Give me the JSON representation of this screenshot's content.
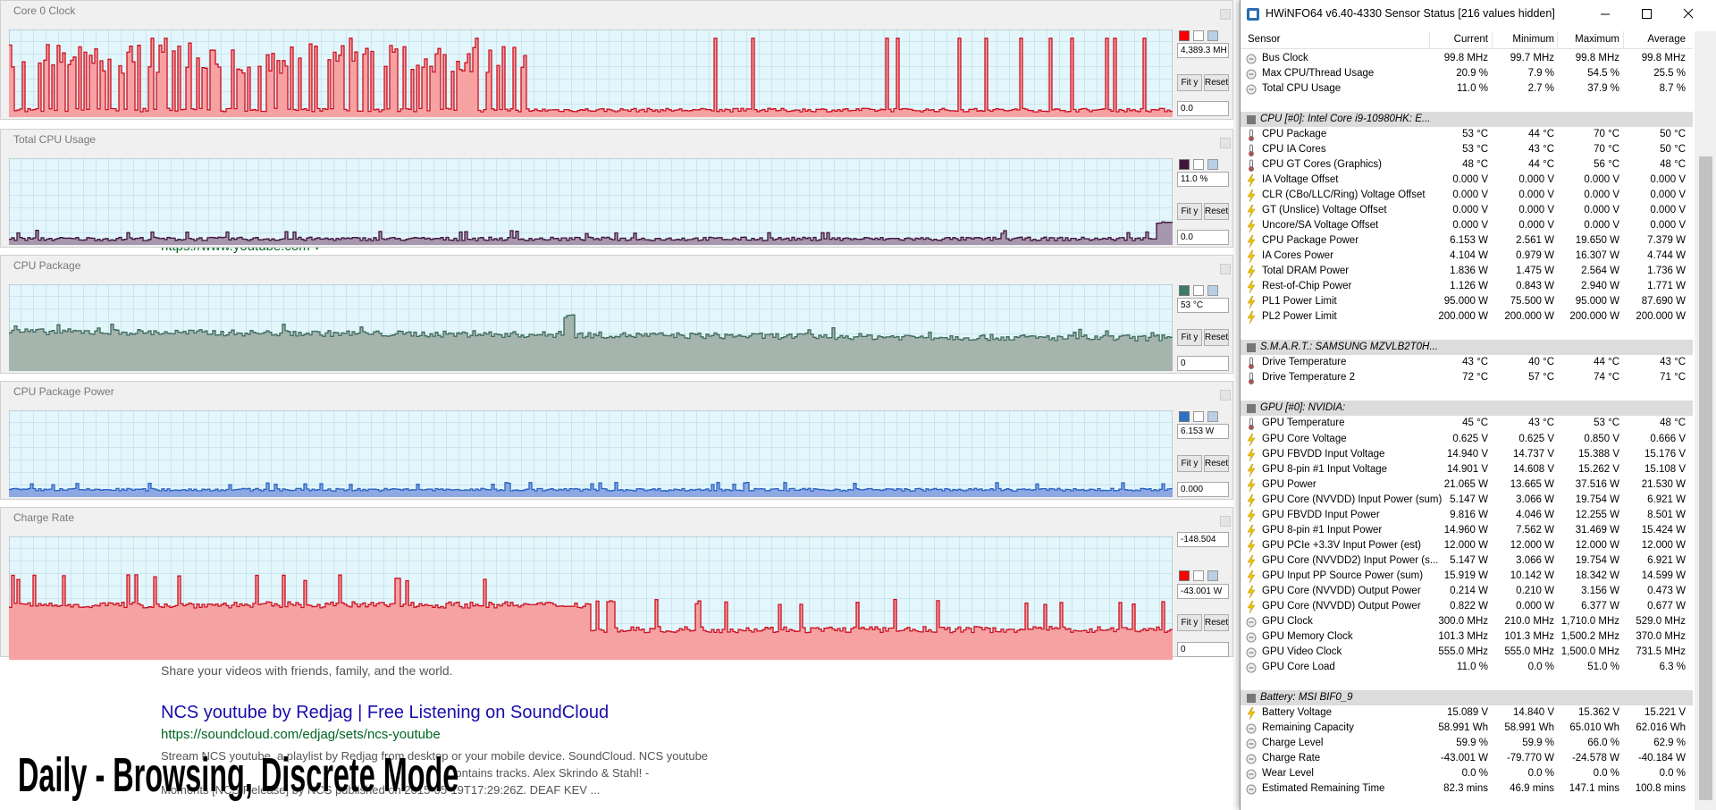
{
  "panels": [
    {
      "title": "Core 0 Clock",
      "readouts": [
        "4,389.3 MH",
        "0.0"
      ],
      "fill": "#f6a2a2",
      "line": "#cc1020",
      "swatch": "#ff0000"
    },
    {
      "title": "Total CPU Usage",
      "readouts": [
        "11.0 %",
        "0.0"
      ],
      "fill": "#a696ae",
      "line": "#40143c",
      "swatch": "#40143c"
    },
    {
      "title": "CPU Package",
      "readouts": [
        "53 °C",
        "0"
      ],
      "fill": "#a6b4ae",
      "line": "#3c6a5a",
      "swatch": "#3c7a6a"
    },
    {
      "title": "CPU Package Power",
      "readouts": [
        "6.153 W",
        "0.000"
      ],
      "fill": "#8ea8e4",
      "line": "#2a62c4",
      "swatch": "#2a72c4"
    },
    {
      "title": "Charge Rate",
      "readouts": [
        "-148.504",
        "-43.001 W",
        "0"
      ],
      "fill": "#f6a2a2",
      "line": "#cc1020",
      "swatch": "#ff0000"
    }
  ],
  "buttons": [
    "Fit y",
    "Reset"
  ],
  "web": {
    "url1": "https://www.youtube.com ▾",
    "tagline": "Share your videos with friends, family, and the world.",
    "link": "NCS youtube by Redjag | Free Listening on SoundCloud",
    "url2": "https://soundcloud.com/edjag/sets/ncs-youtube",
    "snippet": [
      "Stream NCS youtube, a playlist by Redjag from desktop or your mobile device. SoundCloud. NCS youtube",
      "Contains tracks. Alex Skrindo & Stahl! -",
      "Moments [NCS Release] by NCS published on 2015-05-19T17:29:26Z. DEAF KEV ..."
    ]
  },
  "overlay_caption": "Daily - Browsing, Discrete Mode",
  "window": {
    "title": "HWiNFO64 v6.40-4330 Sensor Status [216 values hidden]",
    "columns": [
      "Sensor",
      "Current",
      "Minimum",
      "Maximum",
      "Average"
    ],
    "groups": [
      {
        "rows": [
          [
            "Bus Clock",
            "99.8 MHz",
            "99.7 MHz",
            "99.8 MHz",
            "99.8 MHz"
          ],
          [
            "Max CPU/Thread Usage",
            "20.9 %",
            "7.9 %",
            "54.5 %",
            "25.5 %"
          ],
          [
            "Total CPU Usage",
            "11.0 %",
            "2.7 %",
            "37.9 %",
            "8.7 %"
          ]
        ]
      },
      {
        "header": "CPU [#0]: Intel Core i9-10980HK: E...",
        "rows": [
          [
            "CPU Package",
            "53 °C",
            "44 °C",
            "70 °C",
            "50 °C"
          ],
          [
            "CPU IA Cores",
            "53 °C",
            "43 °C",
            "70 °C",
            "50 °C"
          ],
          [
            "CPU GT Cores (Graphics)",
            "48 °C",
            "44 °C",
            "56 °C",
            "48 °C"
          ],
          [
            "IA Voltage Offset",
            "0.000 V",
            "0.000 V",
            "0.000 V",
            "0.000 V"
          ],
          [
            "CLR (CBo/LLC/Ring) Voltage Offset",
            "0.000 V",
            "0.000 V",
            "0.000 V",
            "0.000 V"
          ],
          [
            "GT (Unslice) Voltage Offset",
            "0.000 V",
            "0.000 V",
            "0.000 V",
            "0.000 V"
          ],
          [
            "Uncore/SA Voltage Offset",
            "0.000 V",
            "0.000 V",
            "0.000 V",
            "0.000 V"
          ],
          [
            "CPU Package Power",
            "6.153 W",
            "2.561 W",
            "19.650 W",
            "7.379 W"
          ],
          [
            "IA Cores Power",
            "4.104 W",
            "0.979 W",
            "16.307 W",
            "4.744 W"
          ],
          [
            "Total DRAM Power",
            "1.836 W",
            "1.475 W",
            "2.564 W",
            "1.736 W"
          ],
          [
            "Rest-of-Chip Power",
            "1.126 W",
            "0.843 W",
            "2.940 W",
            "1.771 W"
          ],
          [
            "PL1 Power Limit",
            "95.000 W",
            "75.500 W",
            "95.000 W",
            "87.690 W"
          ],
          [
            "PL2 Power Limit",
            "200.000 W",
            "200.000 W",
            "200.000 W",
            "200.000 W"
          ]
        ]
      },
      {
        "header": "S.M.A.R.T.: SAMSUNG MZVLB2T0H...",
        "rows": [
          [
            "Drive Temperature",
            "43 °C",
            "40 °C",
            "44 °C",
            "43 °C"
          ],
          [
            "Drive Temperature 2",
            "72 °C",
            "57 °C",
            "74 °C",
            "71 °C"
          ]
        ]
      },
      {
        "header": "GPU [#0]: NVIDIA:",
        "rows": [
          [
            "GPU Temperature",
            "45 °C",
            "43 °C",
            "53 °C",
            "48 °C"
          ],
          [
            "GPU Core Voltage",
            "0.625 V",
            "0.625 V",
            "0.850 V",
            "0.666 V"
          ],
          [
            "GPU FBVDD Input Voltage",
            "14.940 V",
            "14.737 V",
            "15.388 V",
            "15.176 V"
          ],
          [
            "GPU 8-pin #1 Input Voltage",
            "14.901 V",
            "14.608 V",
            "15.262 V",
            "15.108 V"
          ],
          [
            "GPU Power",
            "21.065 W",
            "13.665 W",
            "37.516 W",
            "21.530 W"
          ],
          [
            "GPU Core (NVVDD) Input Power (sum)",
            "5.147 W",
            "3.066 W",
            "19.754 W",
            "6.921 W"
          ],
          [
            "GPU FBVDD Input Power",
            "9.816 W",
            "4.046 W",
            "12.255 W",
            "8.501 W"
          ],
          [
            "GPU 8-pin #1 Input Power",
            "14.960 W",
            "7.562 W",
            "31.469 W",
            "15.424 W"
          ],
          [
            "GPU PCIe +3.3V Input Power (est)",
            "12.000 W",
            "12.000 W",
            "12.000 W",
            "12.000 W"
          ],
          [
            "GPU Core (NVVDD2) Input Power (s...",
            "5.147 W",
            "3.066 W",
            "19.754 W",
            "6.921 W"
          ],
          [
            "GPU Input PP Source Power (sum)",
            "15.919 W",
            "10.142 W",
            "18.342 W",
            "14.599 W"
          ],
          [
            "GPU Core (NVVDD) Output Power",
            "0.214 W",
            "0.210 W",
            "3.156 W",
            "0.473 W"
          ],
          [
            "GPU Core (NVVDD) Output Power",
            "0.822 W",
            "0.000 W",
            "6.377 W",
            "0.677 W"
          ],
          [
            "GPU Clock",
            "300.0 MHz",
            "210.0 MHz",
            "1,710.0 MHz",
            "529.0 MHz"
          ],
          [
            "GPU Memory Clock",
            "101.3 MHz",
            "101.3 MHz",
            "1,500.2 MHz",
            "370.0 MHz"
          ],
          [
            "GPU Video Clock",
            "555.0 MHz",
            "555.0 MHz",
            "1,500.0 MHz",
            "731.5 MHz"
          ],
          [
            "GPU Core Load",
            "11.0 %",
            "0.0 %",
            "51.0 %",
            "6.3 %"
          ]
        ]
      },
      {
        "header": "Battery: MSI BIF0_9",
        "rows": [
          [
            "Battery Voltage",
            "15.089 V",
            "14.840 V",
            "15.362 V",
            "15.221 V"
          ],
          [
            "Remaining Capacity",
            "58.991 Wh",
            "58.991 Wh",
            "65.010 Wh",
            "62.016 Wh"
          ],
          [
            "Charge Level",
            "59.9 %",
            "59.9 %",
            "66.0 %",
            "62.9 %"
          ],
          [
            "Charge Rate",
            "-43.001 W",
            "-79.770 W",
            "-24.578 W",
            "-40.184 W"
          ],
          [
            "Wear Level",
            "0.0 %",
            "0.0 %",
            "0.0 %",
            "0.0 %"
          ],
          [
            "Estimated Remaining Time",
            "82.3 mins",
            "46.9 mins",
            "147.1 mins",
            "100.8 mins"
          ]
        ]
      }
    ]
  }
}
